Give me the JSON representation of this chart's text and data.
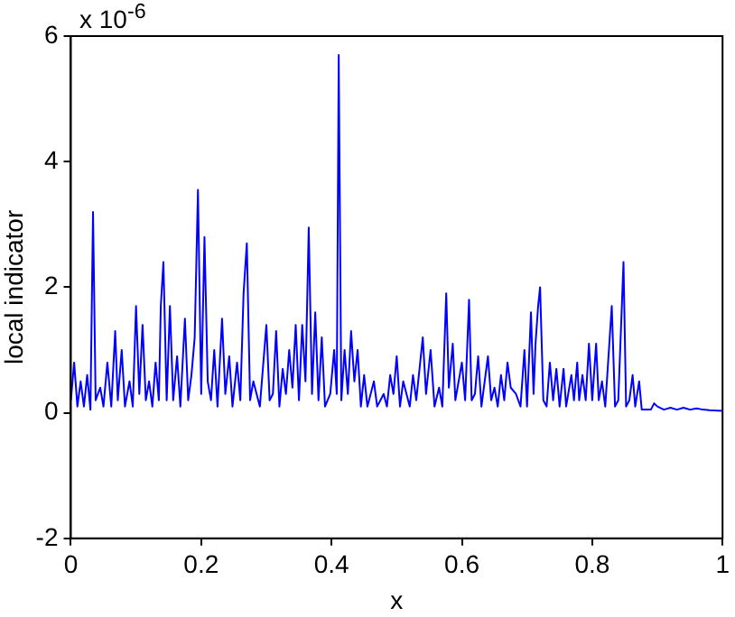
{
  "chart_data": {
    "type": "line",
    "xlabel": "x",
    "ylabel": "local indicator",
    "annotations": [
      "x 10$^{-6}$"
    ],
    "xlim": [
      0,
      1
    ],
    "xticks": [
      0,
      0.2,
      0.4,
      0.6,
      0.8,
      1
    ],
    "ylim": [
      -2,
      6
    ],
    "yticks": [
      -2,
      0,
      2,
      4,
      6
    ],
    "grid": false,
    "legend": false,
    "x": [
      0,
      0.005,
      0.01,
      0.015,
      0.02,
      0.025,
      0.03,
      0.034,
      0.038,
      0.045,
      0.05,
      0.056,
      0.062,
      0.068,
      0.072,
      0.078,
      0.083,
      0.09,
      0.095,
      0.1,
      0.105,
      0.11,
      0.115,
      0.12,
      0.125,
      0.13,
      0.135,
      0.138,
      0.142,
      0.147,
      0.152,
      0.157,
      0.163,
      0.168,
      0.175,
      0.18,
      0.185,
      0.19,
      0.195,
      0.2,
      0.205,
      0.21,
      0.215,
      0.22,
      0.225,
      0.232,
      0.237,
      0.243,
      0.248,
      0.255,
      0.26,
      0.265,
      0.27,
      0.275,
      0.28,
      0.29,
      0.3,
      0.305,
      0.31,
      0.315,
      0.32,
      0.325,
      0.33,
      0.335,
      0.34,
      0.345,
      0.35,
      0.355,
      0.36,
      0.365,
      0.37,
      0.375,
      0.38,
      0.385,
      0.39,
      0.398,
      0.404,
      0.408,
      0.411,
      0.415,
      0.42,
      0.425,
      0.43,
      0.435,
      0.44,
      0.445,
      0.45,
      0.455,
      0.465,
      0.47,
      0.48,
      0.485,
      0.49,
      0.495,
      0.5,
      0.505,
      0.51,
      0.52,
      0.525,
      0.53,
      0.54,
      0.545,
      0.552,
      0.558,
      0.565,
      0.57,
      0.576,
      0.58,
      0.586,
      0.59,
      0.6,
      0.605,
      0.611,
      0.615,
      0.62,
      0.625,
      0.63,
      0.64,
      0.645,
      0.65,
      0.655,
      0.66,
      0.665,
      0.67,
      0.675,
      0.683,
      0.69,
      0.696,
      0.7,
      0.706,
      0.71,
      0.713,
      0.717,
      0.72,
      0.725,
      0.73,
      0.735,
      0.74,
      0.745,
      0.75,
      0.756,
      0.76,
      0.768,
      0.772,
      0.777,
      0.78,
      0.785,
      0.79,
      0.795,
      0.8,
      0.806,
      0.81,
      0.815,
      0.82,
      0.83,
      0.835,
      0.84,
      0.848,
      0.852,
      0.857,
      0.862,
      0.866,
      0.872,
      0.876,
      0.88,
      0.89,
      0.895,
      0.9,
      0.91,
      0.92,
      0.93,
      0.94,
      0.95,
      0.96,
      0.97,
      0.98,
      1
    ],
    "series": [
      {
        "color": "#0000ff",
        "values": [
          0.2,
          0.8,
          0.1,
          0.5,
          0.1,
          0.6,
          0.05,
          3.2,
          0.2,
          0.4,
          0.1,
          0.8,
          0.1,
          1.3,
          0.2,
          1.0,
          0.1,
          0.5,
          0.1,
          1.7,
          0.3,
          1.4,
          0.2,
          0.5,
          0.1,
          0.8,
          0.2,
          1.7,
          2.4,
          0.2,
          1.7,
          0.2,
          0.9,
          0.1,
          1.5,
          0.2,
          0.6,
          1.2,
          3.55,
          0.3,
          2.8,
          0.5,
          0.2,
          1.0,
          0.1,
          1.5,
          0.3,
          0.9,
          0.1,
          0.8,
          0.2,
          1.9,
          2.7,
          0.2,
          0.5,
          0.1,
          1.4,
          0.2,
          0.3,
          1.3,
          0.1,
          0.7,
          0.3,
          1.0,
          0.4,
          1.4,
          0.2,
          1.4,
          0.5,
          2.95,
          0.3,
          1.6,
          0.2,
          1.2,
          0.1,
          0.3,
          1.0,
          0.3,
          5.7,
          0.2,
          1.0,
          0.3,
          1.3,
          0.5,
          1.0,
          0.1,
          0.6,
          0.1,
          0.5,
          0.1,
          0.3,
          0.1,
          0.6,
          0.3,
          0.9,
          0.1,
          0.5,
          0.1,
          0.6,
          0.2,
          1.2,
          0.3,
          1.0,
          0.1,
          0.4,
          0.1,
          1.9,
          0.4,
          1.1,
          0.2,
          0.8,
          0.2,
          1.8,
          0.2,
          0.3,
          0.9,
          0.1,
          0.9,
          0.2,
          0.4,
          0.1,
          0.6,
          0.2,
          0.8,
          0.4,
          0.3,
          0.1,
          1.0,
          0.1,
          1.6,
          0.3,
          1.1,
          1.7,
          2.0,
          0.2,
          0.1,
          0.8,
          0.2,
          0.7,
          0.1,
          0.7,
          0.1,
          0.6,
          0.2,
          0.8,
          0.2,
          0.6,
          0.2,
          1.1,
          0.2,
          1.1,
          0.2,
          0.5,
          0.1,
          1.7,
          0.1,
          0.2,
          2.4,
          0.1,
          0.2,
          0.6,
          0.1,
          0.5,
          0.05,
          0.05,
          0.05,
          0.15,
          0.1,
          0.05,
          0.08,
          0.05,
          0.08,
          0.05,
          0.07,
          0.05,
          0.04,
          0.03
        ]
      }
    ]
  }
}
